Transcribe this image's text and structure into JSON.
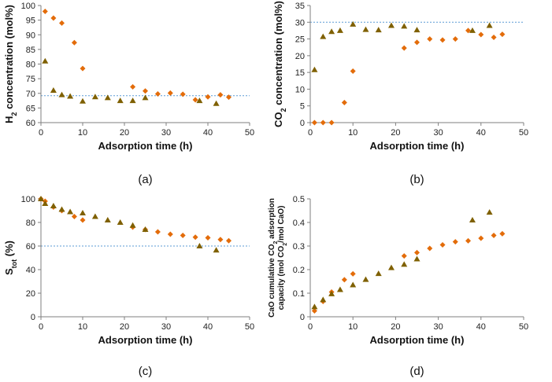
{
  "chart_data": [
    {
      "type": "scatter",
      "panel_label": "(a)",
      "xlabel": "Adsorption time (h)",
      "ylabel": "H2 concentration (mol%)",
      "ylabel_parts": {
        "pre": "H",
        "sub": "2",
        "post": " concentration (mol%)"
      },
      "xlim": [
        0,
        50
      ],
      "ylim": [
        60,
        100
      ],
      "xticks": [
        0,
        10,
        20,
        30,
        40,
        50
      ],
      "yticks": [
        60,
        65,
        70,
        75,
        80,
        85,
        90,
        95,
        100
      ],
      "reference_line": 69.2,
      "series": [
        {
          "name": "diamond",
          "marker": "diamond",
          "color": "#E36C0A",
          "x": [
            1,
            3,
            5,
            8,
            10,
            22,
            25,
            28,
            31,
            34,
            37,
            40,
            43,
            45
          ],
          "y": [
            98,
            95.7,
            94,
            87.3,
            78.5,
            72.2,
            70.8,
            69.8,
            70.1,
            69.7,
            67.8,
            68.8,
            69.5,
            68.7
          ]
        },
        {
          "name": "triangle",
          "marker": "triangle",
          "color": "#7F6000",
          "x": [
            1,
            3,
            5,
            7,
            10,
            13,
            16,
            19,
            22,
            25,
            38,
            42
          ],
          "y": [
            81,
            71,
            69.5,
            69,
            67.3,
            68.8,
            68.5,
            67.5,
            67.5,
            68.5,
            67.5,
            66.5
          ]
        }
      ]
    },
    {
      "type": "scatter",
      "panel_label": "(b)",
      "xlabel": "Adsorption time (h)",
      "ylabel": "CO2 concentration (mol%)",
      "ylabel_parts": {
        "pre": "CO",
        "sub": "2",
        "post": " concentration (mol%)"
      },
      "xlim": [
        0,
        50
      ],
      "ylim": [
        0,
        35
      ],
      "xticks": [
        0,
        10,
        20,
        30,
        40,
        50
      ],
      "yticks": [
        0,
        5,
        10,
        15,
        20,
        25,
        30,
        35
      ],
      "reference_line": 30,
      "series": [
        {
          "name": "diamond",
          "marker": "diamond",
          "color": "#E36C0A",
          "x": [
            1,
            3,
            5,
            8,
            10,
            22,
            25,
            28,
            31,
            34,
            37,
            40,
            43,
            45
          ],
          "y": [
            0,
            0,
            0,
            6,
            15.4,
            22.3,
            24,
            25,
            24.7,
            25,
            27.5,
            26.3,
            25.5,
            26.4
          ]
        },
        {
          "name": "triangle",
          "marker": "triangle",
          "color": "#7F6000",
          "x": [
            1,
            3,
            5,
            7,
            10,
            13,
            16,
            19,
            22,
            25,
            38,
            42
          ],
          "y": [
            15.8,
            25.7,
            27.2,
            27.5,
            29.4,
            27.8,
            27.7,
            29,
            28.8,
            27.7,
            27.5,
            29
          ]
        }
      ]
    },
    {
      "type": "scatter",
      "panel_label": "(c)",
      "xlabel": "Adsorption time (h)",
      "ylabel": "Stot (%)",
      "ylabel_parts": {
        "pre": "S",
        "sub": "tot",
        "post": " (%)"
      },
      "xlim": [
        0,
        50
      ],
      "ylim": [
        0,
        100
      ],
      "xticks": [
        0,
        10,
        20,
        30,
        40,
        50
      ],
      "yticks": [
        0,
        20,
        40,
        60,
        80,
        100
      ],
      "reference_line": 60,
      "series": [
        {
          "name": "diamond",
          "marker": "diamond",
          "color": "#E36C0A",
          "x": [
            0,
            1,
            3,
            5,
            8,
            10,
            22,
            25,
            28,
            31,
            34,
            37,
            40,
            43,
            45
          ],
          "y": [
            100,
            98,
            93,
            90,
            85,
            82,
            76,
            74,
            72,
            70,
            69,
            67.5,
            67,
            65.5,
            64.5
          ]
        },
        {
          "name": "triangle",
          "marker": "triangle",
          "color": "#7F6000",
          "x": [
            0,
            1,
            3,
            5,
            7,
            10,
            13,
            16,
            19,
            22,
            25,
            38,
            42
          ],
          "y": [
            100,
            96,
            94,
            91,
            89,
            88,
            85,
            82,
            80,
            77.5,
            74,
            60,
            56.5
          ]
        }
      ]
    },
    {
      "type": "scatter",
      "panel_label": "(d)",
      "xlabel": "Adsorption time (h)",
      "ylabel": "CaO cumulative CO2 adsorption capacity (mol CO2/mol CaO)",
      "ylabel_line1": {
        "pre": "CaO cumulative CO",
        "sub": "2",
        "post": " adsorption"
      },
      "ylabel_line2": {
        "pre": "capacity (mol CO",
        "sub": "2",
        "post": "/mol CaO)"
      },
      "xlim": [
        0,
        50
      ],
      "ylim": [
        0,
        0.5
      ],
      "xticks": [
        0,
        10,
        20,
        30,
        40,
        50
      ],
      "yticks": [
        0,
        0.1,
        0.2,
        0.3,
        0.4,
        0.5
      ],
      "series": [
        {
          "name": "diamond",
          "marker": "diamond",
          "color": "#E36C0A",
          "x": [
            1,
            3,
            5,
            8,
            10,
            22,
            25,
            28,
            31,
            34,
            37,
            40,
            43,
            45
          ],
          "y": [
            0.025,
            0.065,
            0.105,
            0.157,
            0.182,
            0.258,
            0.272,
            0.29,
            0.305,
            0.318,
            0.322,
            0.333,
            0.345,
            0.352
          ]
        },
        {
          "name": "triangle",
          "marker": "triangle",
          "color": "#7F6000",
          "x": [
            1,
            3,
            5,
            7,
            10,
            13,
            16,
            19,
            22,
            25,
            38,
            42
          ],
          "y": [
            0.042,
            0.072,
            0.097,
            0.115,
            0.135,
            0.158,
            0.183,
            0.208,
            0.222,
            0.245,
            0.41,
            0.443
          ]
        }
      ]
    }
  ]
}
